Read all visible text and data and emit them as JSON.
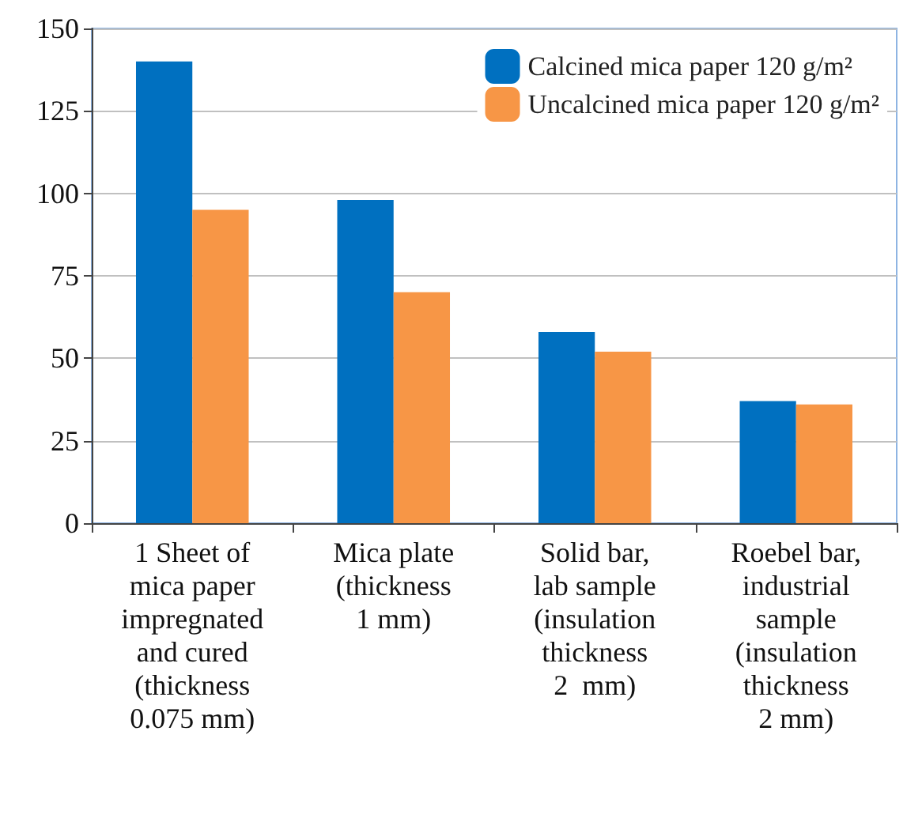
{
  "chart_data": {
    "type": "bar",
    "categories": [
      "1 Sheet of\nmica paper\nimpregnated\nand cured\n(thickness\n0.075 mm)",
      "Mica plate\n(thickness\n1 mm)",
      "Solid bar,\nlab sample\n(insulation\nthickness\n2  mm)",
      "Roebel bar,\nindustrial\nsample\n(insulation\nthickness\n2 mm)"
    ],
    "series": [
      {
        "name": "Calcined mica paper 120 g/m²",
        "color": "#0070c0",
        "values": [
          140,
          98,
          58,
          37
        ]
      },
      {
        "name": "Uncalcined mica paper 120 g/m²",
        "color": "#f79646",
        "values": [
          95,
          70,
          52,
          36
        ]
      }
    ],
    "ylim": [
      0,
      150
    ],
    "yticks": [
      0,
      25,
      50,
      75,
      100,
      125,
      150
    ],
    "grid": "y",
    "legend": "top right"
  }
}
